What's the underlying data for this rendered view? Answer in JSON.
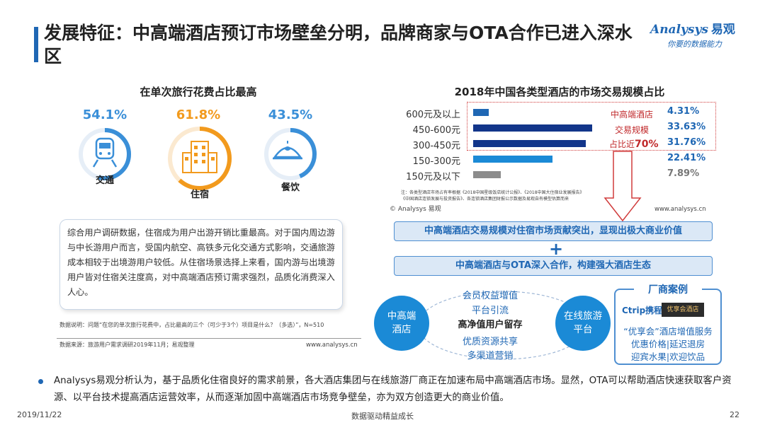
{
  "title": "发展特征：中高端酒店预订市场壁垒分明，品牌商家与OTA合作已进入深水区",
  "logo": {
    "main": "Analysys",
    "cn": "易观",
    "tagline": "你要的数据能力"
  },
  "left": {
    "section_title": "在单次旅行花费占比最高",
    "items": [
      {
        "label": "交通",
        "pct": "54.1%",
        "value": 54.1,
        "color": "#3a8fd8",
        "icon": "train-icon"
      },
      {
        "label": "住宿",
        "pct": "61.8%",
        "value": 61.8,
        "color": "#f29a1d",
        "icon": "hotel-building-icon"
      },
      {
        "label": "餐饮",
        "pct": "43.5%",
        "value": 43.5,
        "color": "#3a8fd8",
        "icon": "food-cloche-icon"
      }
    ],
    "note": "综合用户调研数据，住宿成为用户出游开销比重最高。对于国内周边游与中长游用户而言，受国内航空、高铁多元化交通方式影响，交通旅游成本相较于出境游用户较低。从住宿场景选择上来看，国内游与出境游用户皆对住宿关注度高，对中高端酒店预订需求强烈，品质化消费深入人心。",
    "data_note": "数据说明：问题“在您的单次旅行花费中，占比最高的三个（可少于3个）项目是什么？（多选）”，N=510",
    "source": "数据来源：旅游用户需求调研2019年11月；易观整理",
    "url": "www.analysys.cn"
  },
  "chart_data": {
    "type": "bar",
    "title": "2018年中国各类型酒店的市场交易规模占比",
    "categories": [
      "600元及以上",
      "450-600元",
      "300-450元",
      "150-300元",
      "150元及以下"
    ],
    "values": [
      4.31,
      33.63,
      31.76,
      22.41,
      7.89
    ],
    "value_labels": [
      "4.31%",
      "33.63%",
      "31.76%",
      "22.41%",
      "7.89%"
    ],
    "colors": [
      "#1f67b4",
      "#12358a",
      "#12358a",
      "#1b8ad6",
      "#8c8c8c"
    ],
    "xlim": [
      0,
      35
    ],
    "annotation": [
      "中高端酒店",
      "交易规模",
      "占比近",
      "70%"
    ]
  },
  "right": {
    "chart_note_1": "注：各类型酒店市场占有率根据《2018中国星级饭店统计公报》、《2018中国大住宿业发展报告》",
    "chart_note_2": "《中国酒店连锁发展与投资报告》、各连锁酒店集团财报公示数据及易观自有模型估算而来",
    "copyright": "© Analysys 易观",
    "url": "www.analysys.cn",
    "band1": "中高端酒店交易规模对住宿市场贡献突出，显现出极大商业价值",
    "plus": "+",
    "band2": "中高端酒店与OTA深入合作，构建强大酒店生态",
    "circle_left": "中高端\n酒店",
    "circle_right": "在线旅游\n平台",
    "mid": [
      "会员权益增值",
      "平台引流",
      "高净值用户留存",
      "优质资源共享",
      "多渠道营销"
    ],
    "case_title": "厂商案例",
    "case_logo1": "Ctrip携程",
    "case_logo2": "优享会酒店",
    "case_lines": [
      "“优享会”酒店增值服务",
      "优惠价格|延迟退房",
      "迎宾水果|欢迎饮品"
    ]
  },
  "bullet": "Analysys易观分析认为，基于品质化住宿良好的需求前景，各大酒店集团与在线旅游厂商正在加速布局中高端酒店市场。显然，OTA可以帮助酒店快速获取客户资源、以平台技术提高酒店运营效率，从而逐渐加固中高端酒店市场竞争壁垒，亦为双方创造更大的商业价值。",
  "footer": {
    "date": "2019/11/22",
    "center": "数据驱动精益成长",
    "page": "22"
  }
}
